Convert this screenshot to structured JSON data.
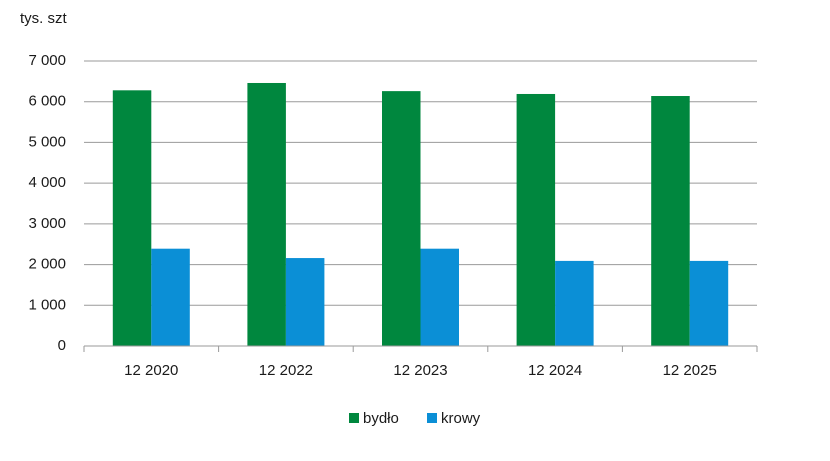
{
  "chart_data": {
    "type": "bar",
    "y_label": "tys. szt",
    "categories": [
      "12 2020",
      "12 2022",
      "12 2023",
      "12 2024",
      "12 2025"
    ],
    "series": [
      {
        "name": "bydło",
        "color": "#00873e",
        "values": [
          6280,
          6460,
          6260,
          6190,
          6140
        ]
      },
      {
        "name": "krowy",
        "color": "#0b8fd6",
        "values": [
          2390,
          2160,
          2390,
          2090,
          2090
        ]
      }
    ],
    "ylim": [
      0,
      7000
    ],
    "yticks": [
      0,
      {
        "value": 1000,
        "label": "1 000"
      },
      {
        "value": 2000,
        "label": "2 000"
      },
      {
        "value": 3000,
        "label": "3 000"
      },
      {
        "value": 4000,
        "label": "4 000"
      },
      {
        "value": 5000,
        "label": "5 000"
      },
      {
        "value": 6000,
        "label": "6 000"
      },
      {
        "value": 7000,
        "label": "7 000"
      }
    ],
    "grid": true,
    "legend": "bottom"
  }
}
